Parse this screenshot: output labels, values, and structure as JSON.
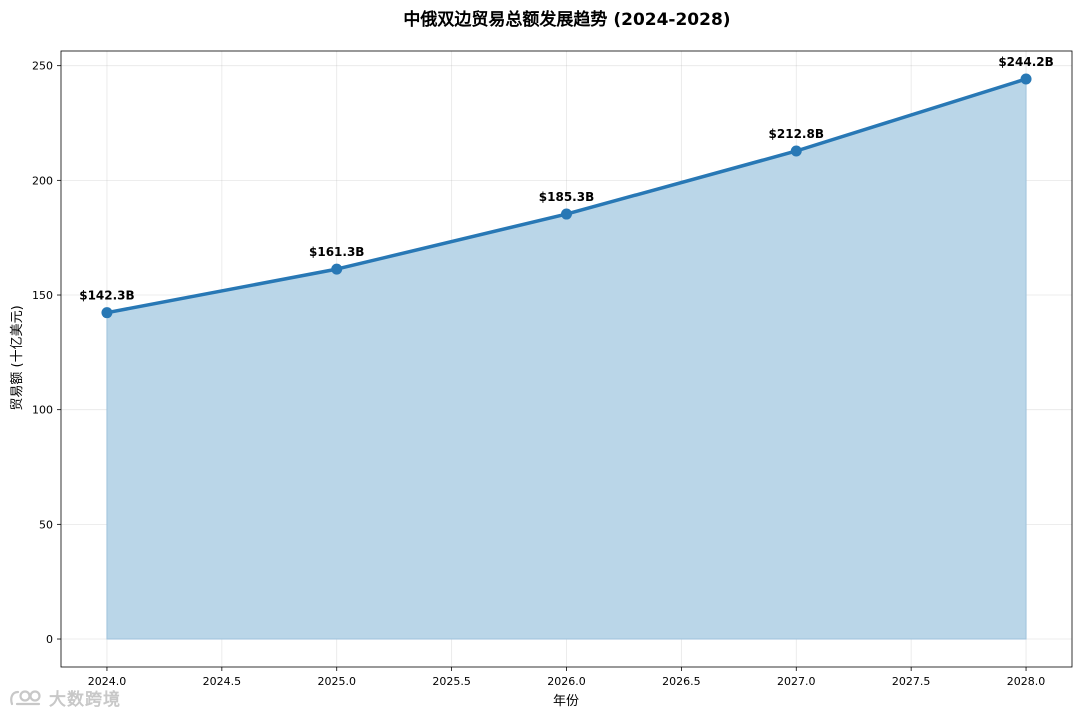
{
  "chart_data": {
    "type": "area",
    "title": "中俄双边贸易总额发展趋势 (2024-2028)",
    "xlabel": "年份",
    "ylabel": "贸易额 (十亿美元)",
    "x": [
      2024.0,
      2025.0,
      2026.0,
      2027.0,
      2028.0
    ],
    "values": [
      142.3,
      161.3,
      185.3,
      212.8,
      244.2
    ],
    "data_labels": [
      "$142.3B",
      "$161.3B",
      "$185.3B",
      "$212.8B",
      "$244.2B"
    ],
    "x_ticks": [
      2024.0,
      2024.5,
      2025.0,
      2025.5,
      2026.0,
      2026.5,
      2027.0,
      2027.5,
      2028.0
    ],
    "x_tick_labels": [
      "2024.0",
      "2024.5",
      "2025.0",
      "2025.5",
      "2026.0",
      "2026.5",
      "2027.0",
      "2027.5",
      "2028.0"
    ],
    "y_ticks": [
      0,
      50,
      100,
      150,
      200,
      250
    ],
    "y_tick_labels": [
      "0",
      "50",
      "100",
      "150",
      "200",
      "250"
    ],
    "xlim": [
      2023.8,
      2028.2
    ],
    "ylim": [
      -12.2,
      256.4
    ],
    "grid": true,
    "legend": "none",
    "colors": {
      "line": "#2878b5",
      "fill": "#bad6e8",
      "fill_edge": "#9fc2dc"
    }
  },
  "watermark": {
    "text": "大数跨境",
    "icon": "logo-icon"
  }
}
